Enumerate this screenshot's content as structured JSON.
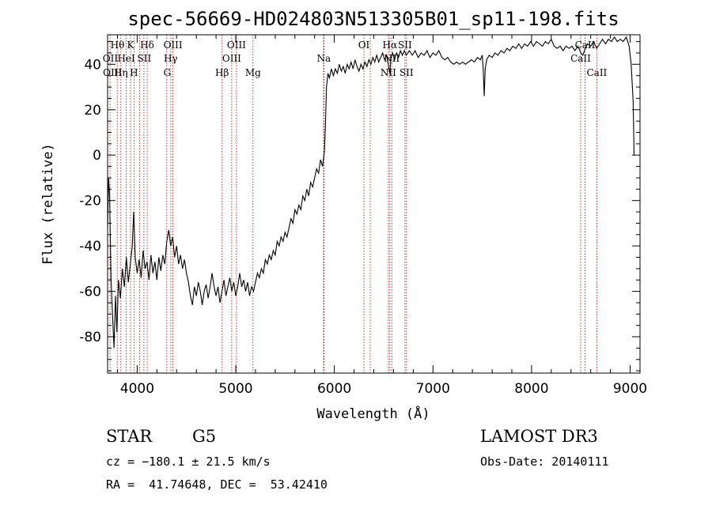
{
  "chart_data": {
    "type": "line",
    "title": "spec-56669-HD024803N513305B01_sp11-198.fits",
    "xlabel": "Wavelength (Å)",
    "ylabel": "Flux (relative)",
    "xlim": [
      3700,
      9100
    ],
    "ylim": [
      -96,
      53
    ],
    "x_ticks": [
      4000,
      5000,
      6000,
      7000,
      8000,
      9000
    ],
    "y_ticks": [
      -80,
      -60,
      -40,
      -20,
      0,
      20,
      40
    ],
    "grid": false,
    "series": [
      {
        "points": [
          [
            3700,
            -32
          ],
          [
            3710,
            -10
          ],
          [
            3720,
            -18
          ],
          [
            3735,
            -55
          ],
          [
            3750,
            -70
          ],
          [
            3765,
            -85
          ],
          [
            3780,
            -62
          ],
          [
            3795,
            -78
          ],
          [
            3810,
            -55
          ],
          [
            3830,
            -63
          ],
          [
            3850,
            -50
          ],
          [
            3870,
            -58
          ],
          [
            3890,
            -45
          ],
          [
            3910,
            -56
          ],
          [
            3930,
            -48
          ],
          [
            3950,
            -40
          ],
          [
            3965,
            -25
          ],
          [
            3980,
            -45
          ],
          [
            4000,
            -52
          ],
          [
            4020,
            -46
          ],
          [
            4040,
            -54
          ],
          [
            4060,
            -42
          ],
          [
            4080,
            -50
          ],
          [
            4100,
            -47
          ],
          [
            4120,
            -55
          ],
          [
            4140,
            -44
          ],
          [
            4160,
            -52
          ],
          [
            4180,
            -47
          ],
          [
            4200,
            -55
          ],
          [
            4220,
            -45
          ],
          [
            4240,
            -51
          ],
          [
            4260,
            -44
          ],
          [
            4280,
            -48
          ],
          [
            4300,
            -38
          ],
          [
            4320,
            -33
          ],
          [
            4340,
            -40
          ],
          [
            4360,
            -36
          ],
          [
            4380,
            -45
          ],
          [
            4400,
            -40
          ],
          [
            4420,
            -48
          ],
          [
            4440,
            -44
          ],
          [
            4460,
            -50
          ],
          [
            4480,
            -46
          ],
          [
            4500,
            -52
          ],
          [
            4520,
            -56
          ],
          [
            4540,
            -62
          ],
          [
            4560,
            -66
          ],
          [
            4580,
            -58
          ],
          [
            4600,
            -62
          ],
          [
            4620,
            -56
          ],
          [
            4640,
            -60
          ],
          [
            4660,
            -66
          ],
          [
            4680,
            -60
          ],
          [
            4700,
            -57
          ],
          [
            4720,
            -63
          ],
          [
            4740,
            -58
          ],
          [
            4760,
            -52
          ],
          [
            4780,
            -58
          ],
          [
            4800,
            -62
          ],
          [
            4820,
            -58
          ],
          [
            4840,
            -65
          ],
          [
            4860,
            -60
          ],
          [
            4880,
            -55
          ],
          [
            4900,
            -62
          ],
          [
            4920,
            -58
          ],
          [
            4940,
            -54
          ],
          [
            4960,
            -60
          ],
          [
            4980,
            -56
          ],
          [
            5000,
            -62
          ],
          [
            5020,
            -58
          ],
          [
            5040,
            -52
          ],
          [
            5060,
            -58
          ],
          [
            5080,
            -55
          ],
          [
            5100,
            -60
          ],
          [
            5120,
            -56
          ],
          [
            5140,
            -62
          ],
          [
            5160,
            -58
          ],
          [
            5180,
            -60
          ],
          [
            5200,
            -56
          ],
          [
            5220,
            -52
          ],
          [
            5240,
            -54
          ],
          [
            5260,
            -50
          ],
          [
            5280,
            -52
          ],
          [
            5300,
            -46
          ],
          [
            5320,
            -48
          ],
          [
            5340,
            -44
          ],
          [
            5360,
            -46
          ],
          [
            5380,
            -42
          ],
          [
            5400,
            -44
          ],
          [
            5420,
            -38
          ],
          [
            5440,
            -40
          ],
          [
            5460,
            -36
          ],
          [
            5480,
            -38
          ],
          [
            5500,
            -34
          ],
          [
            5520,
            -36
          ],
          [
            5540,
            -32
          ],
          [
            5560,
            -28
          ],
          [
            5580,
            -30
          ],
          [
            5600,
            -24
          ],
          [
            5620,
            -26
          ],
          [
            5640,
            -22
          ],
          [
            5660,
            -24
          ],
          [
            5680,
            -18
          ],
          [
            5700,
            -20
          ],
          [
            5720,
            -15
          ],
          [
            5740,
            -18
          ],
          [
            5760,
            -12
          ],
          [
            5780,
            -14
          ],
          [
            5800,
            -10
          ],
          [
            5820,
            -6
          ],
          [
            5840,
            -8
          ],
          [
            5860,
            -2
          ],
          [
            5880,
            -5
          ],
          [
            5900,
            2
          ],
          [
            5910,
            14
          ],
          [
            5920,
            30
          ],
          [
            5935,
            36
          ],
          [
            5950,
            34
          ],
          [
            5970,
            38
          ],
          [
            5990,
            35
          ],
          [
            6010,
            38
          ],
          [
            6030,
            36
          ],
          [
            6050,
            40
          ],
          [
            6070,
            37
          ],
          [
            6090,
            39
          ],
          [
            6110,
            36
          ],
          [
            6130,
            40
          ],
          [
            6150,
            38
          ],
          [
            6170,
            41
          ],
          [
            6190,
            38
          ],
          [
            6210,
            42
          ],
          [
            6230,
            39
          ],
          [
            6250,
            37
          ],
          [
            6270,
            40
          ],
          [
            6290,
            38
          ],
          [
            6310,
            41
          ],
          [
            6330,
            39
          ],
          [
            6350,
            42
          ],
          [
            6370,
            40
          ],
          [
            6390,
            43
          ],
          [
            6410,
            41
          ],
          [
            6430,
            44
          ],
          [
            6450,
            41
          ],
          [
            6470,
            43
          ],
          [
            6490,
            45
          ],
          [
            6510,
            42
          ],
          [
            6530,
            44
          ],
          [
            6550,
            39
          ],
          [
            6562,
            36
          ],
          [
            6575,
            43
          ],
          [
            6590,
            45
          ],
          [
            6610,
            42
          ],
          [
            6630,
            45
          ],
          [
            6650,
            43
          ],
          [
            6670,
            46
          ],
          [
            6690,
            44
          ],
          [
            6710,
            46
          ],
          [
            6730,
            44
          ],
          [
            6760,
            46
          ],
          [
            6790,
            44
          ],
          [
            6820,
            46
          ],
          [
            6850,
            43
          ],
          [
            6880,
            45
          ],
          [
            6910,
            44
          ],
          [
            6940,
            46
          ],
          [
            6970,
            43
          ],
          [
            7000,
            45
          ],
          [
            7030,
            44
          ],
          [
            7060,
            46
          ],
          [
            7090,
            43
          ],
          [
            7120,
            42
          ],
          [
            7150,
            43
          ],
          [
            7180,
            41
          ],
          [
            7210,
            40
          ],
          [
            7240,
            41
          ],
          [
            7270,
            40
          ],
          [
            7300,
            41
          ],
          [
            7330,
            40
          ],
          [
            7360,
            41
          ],
          [
            7390,
            42
          ],
          [
            7420,
            41
          ],
          [
            7450,
            43
          ],
          [
            7480,
            42
          ],
          [
            7500,
            44
          ],
          [
            7510,
            38
          ],
          [
            7520,
            26
          ],
          [
            7530,
            38
          ],
          [
            7545,
            42
          ],
          [
            7570,
            44
          ],
          [
            7600,
            43
          ],
          [
            7630,
            45
          ],
          [
            7660,
            44
          ],
          [
            7690,
            46
          ],
          [
            7720,
            45
          ],
          [
            7750,
            47
          ],
          [
            7780,
            46
          ],
          [
            7810,
            48
          ],
          [
            7840,
            47
          ],
          [
            7870,
            49
          ],
          [
            7900,
            47
          ],
          [
            7930,
            49
          ],
          [
            7960,
            48
          ],
          [
            7990,
            50
          ],
          [
            8020,
            48
          ],
          [
            8050,
            50
          ],
          [
            8080,
            49
          ],
          [
            8110,
            48
          ],
          [
            8140,
            50
          ],
          [
            8170,
            49
          ],
          [
            8200,
            51
          ],
          [
            8230,
            48
          ],
          [
            8260,
            47
          ],
          [
            8290,
            48
          ],
          [
            8320,
            46
          ],
          [
            8350,
            48
          ],
          [
            8380,
            47
          ],
          [
            8410,
            48
          ],
          [
            8440,
            46
          ],
          [
            8470,
            48
          ],
          [
            8500,
            45
          ],
          [
            8520,
            44
          ],
          [
            8545,
            47
          ],
          [
            8570,
            49
          ],
          [
            8600,
            48
          ],
          [
            8630,
            50
          ],
          [
            8660,
            47
          ],
          [
            8690,
            49
          ],
          [
            8720,
            51
          ],
          [
            8750,
            49
          ],
          [
            8780,
            51
          ],
          [
            8810,
            50
          ],
          [
            8840,
            52
          ],
          [
            8870,
            50
          ],
          [
            8900,
            51
          ],
          [
            8930,
            50
          ],
          [
            8960,
            52
          ],
          [
            8990,
            48
          ],
          [
            9010,
            40
          ],
          [
            9030,
            24
          ],
          [
            9040,
            0
          ]
        ]
      }
    ],
    "line_marks": [
      3725,
      3798,
      3835,
      3889,
      3933,
      3970,
      4026,
      4068,
      4102,
      4300,
      4341,
      4363,
      4861,
      4959,
      5007,
      5175,
      5890,
      5896,
      6300,
      6364,
      6548,
      6563,
      6583,
      6716,
      6731,
      8498,
      8542,
      8662
    ],
    "annotations": [
      {
        "text": "Hθ",
        "x": 3800,
        "row": 1
      },
      {
        "text": "K",
        "x": 3933,
        "row": 1
      },
      {
        "text": "Hδ",
        "x": 4101,
        "row": 1
      },
      {
        "text": "OIII",
        "x": 4363,
        "row": 1
      },
      {
        "text": "OIII",
        "x": 5007,
        "row": 1
      },
      {
        "text": "OI",
        "x": 6300,
        "row": 1
      },
      {
        "text": "Hα",
        "x": 6563,
        "row": 1
      },
      {
        "text": "SII",
        "x": 6716,
        "row": 1
      },
      {
        "text": "CaII",
        "x": 8542,
        "row": 1
      },
      {
        "text": "OII",
        "x": 3727,
        "row": 2
      },
      {
        "text": "HeI",
        "x": 3889,
        "row": 2
      },
      {
        "text": "SII",
        "x": 4072,
        "row": 2
      },
      {
        "text": "Hγ",
        "x": 4340,
        "row": 2
      },
      {
        "text": "OIII",
        "x": 4959,
        "row": 2
      },
      {
        "text": "Na",
        "x": 5893,
        "row": 2
      },
      {
        "text": "NII",
        "x": 6583,
        "row": 2
      },
      {
        "text": "CaII",
        "x": 8498,
        "row": 2
      },
      {
        "text": "OIII",
        "x": 3750,
        "row": 3
      },
      {
        "text": "Hη",
        "x": 3835,
        "row": 3
      },
      {
        "text": "H",
        "x": 3968,
        "row": 3
      },
      {
        "text": "G",
        "x": 4305,
        "row": 3
      },
      {
        "text": "Hβ",
        "x": 4861,
        "row": 3
      },
      {
        "text": "Mg",
        "x": 5175,
        "row": 3
      },
      {
        "text": "NII",
        "x": 6548,
        "row": 3
      },
      {
        "text": "SII",
        "x": 6731,
        "row": 3
      },
      {
        "text": "CaII",
        "x": 8662,
        "row": 3
      }
    ]
  },
  "info": {
    "class_label": "STAR",
    "subclass": "G5",
    "survey": "LAMOST DR3",
    "velocity": "cz = −180.1 ± 21.5 km/s",
    "obs_date": "Obs-Date: 20140111",
    "coords": "RA =  41.74648, DEC =  53.42410"
  }
}
